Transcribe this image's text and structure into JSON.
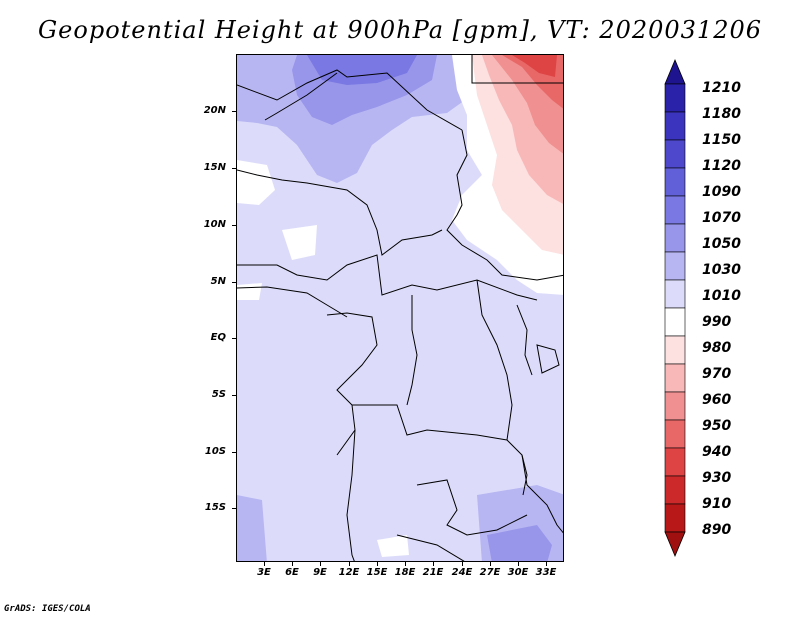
{
  "title": "Geopotential Height at 900hPa [gpm], VT: 2020031206",
  "footer": "GrADS: IGES/COLA",
  "map": {
    "y_labels": [
      "20N",
      "15N",
      "10N",
      "5N",
      "EQ",
      "5S",
      "10S",
      "15S"
    ],
    "x_labels": [
      "3E",
      "6E",
      "9E",
      "12E",
      "15E",
      "18E",
      "21E",
      "24E",
      "27E",
      "30E",
      "33E"
    ],
    "background_color": "#dcdcfa"
  },
  "colorbar": {
    "levels_top_to_bottom": [
      "1210",
      "1180",
      "1150",
      "1120",
      "1090",
      "1070",
      "1050",
      "1030",
      "1010",
      "990",
      "980",
      "970",
      "960",
      "950",
      "940",
      "930",
      "910",
      "890"
    ],
    "colors_top_to_bottom": [
      "#1e1490",
      "#2a22a8",
      "#3b34be",
      "#4d48cc",
      "#6260d8",
      "#7a78e2",
      "#9896ea",
      "#b8b6f2",
      "#dcdcfa",
      "#ffffff",
      "#fde0e0",
      "#f8b8b8",
      "#f09090",
      "#e86868",
      "#de4444",
      "#cc2a2a",
      "#b81818",
      "#a01010"
    ]
  }
}
